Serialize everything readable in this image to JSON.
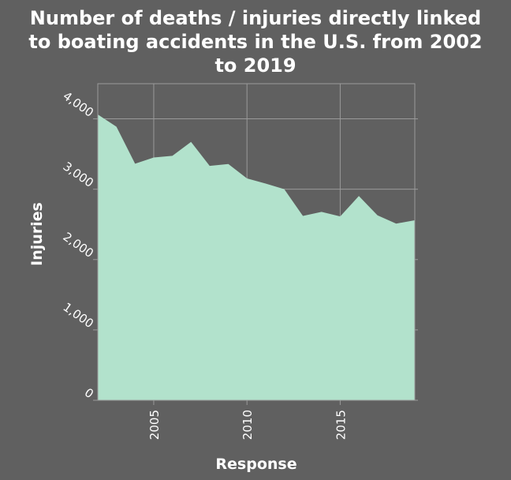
{
  "chart_data": {
    "type": "area",
    "title": "Number of deaths / injuries directly linked to boating accidents in the U.S. from 2002 to 2019",
    "title_lines": [
      "Number of deaths / injuries directly linked",
      "to boating accidents in the U.S. from 2002",
      "to 2019"
    ],
    "xlabel": "Response",
    "ylabel": "Injuries",
    "x": [
      2002,
      2003,
      2004,
      2005,
      2006,
      2007,
      2008,
      2009,
      2010,
      2011,
      2012,
      2013,
      2014,
      2015,
      2016,
      2017,
      2018,
      2019
    ],
    "series": [
      {
        "values": [
          4062,
          3888,
          3363,
          3451,
          3474,
          3673,
          3331,
          3358,
          3153,
          3081,
          3000,
          2620,
          2678,
          2613,
          2903,
          2629,
          2511,
          2559
        ]
      }
    ],
    "xlim": [
      2002,
      2019
    ],
    "ylim": [
      0,
      4500
    ],
    "xticks": [
      2005,
      2010,
      2015
    ],
    "xtick_labels": [
      "2005",
      "2010",
      "2015"
    ],
    "yticks": [
      0,
      1000,
      2000,
      3000,
      4000
    ],
    "ytick_labels": [
      "0",
      "1,000",
      "2,000",
      "3,000",
      "4,000"
    ],
    "grid": true,
    "colors": {
      "background": "#606060",
      "area_fill": "#b2e2cc",
      "grid": "#9a9a9a",
      "text": "#ffffff"
    }
  }
}
